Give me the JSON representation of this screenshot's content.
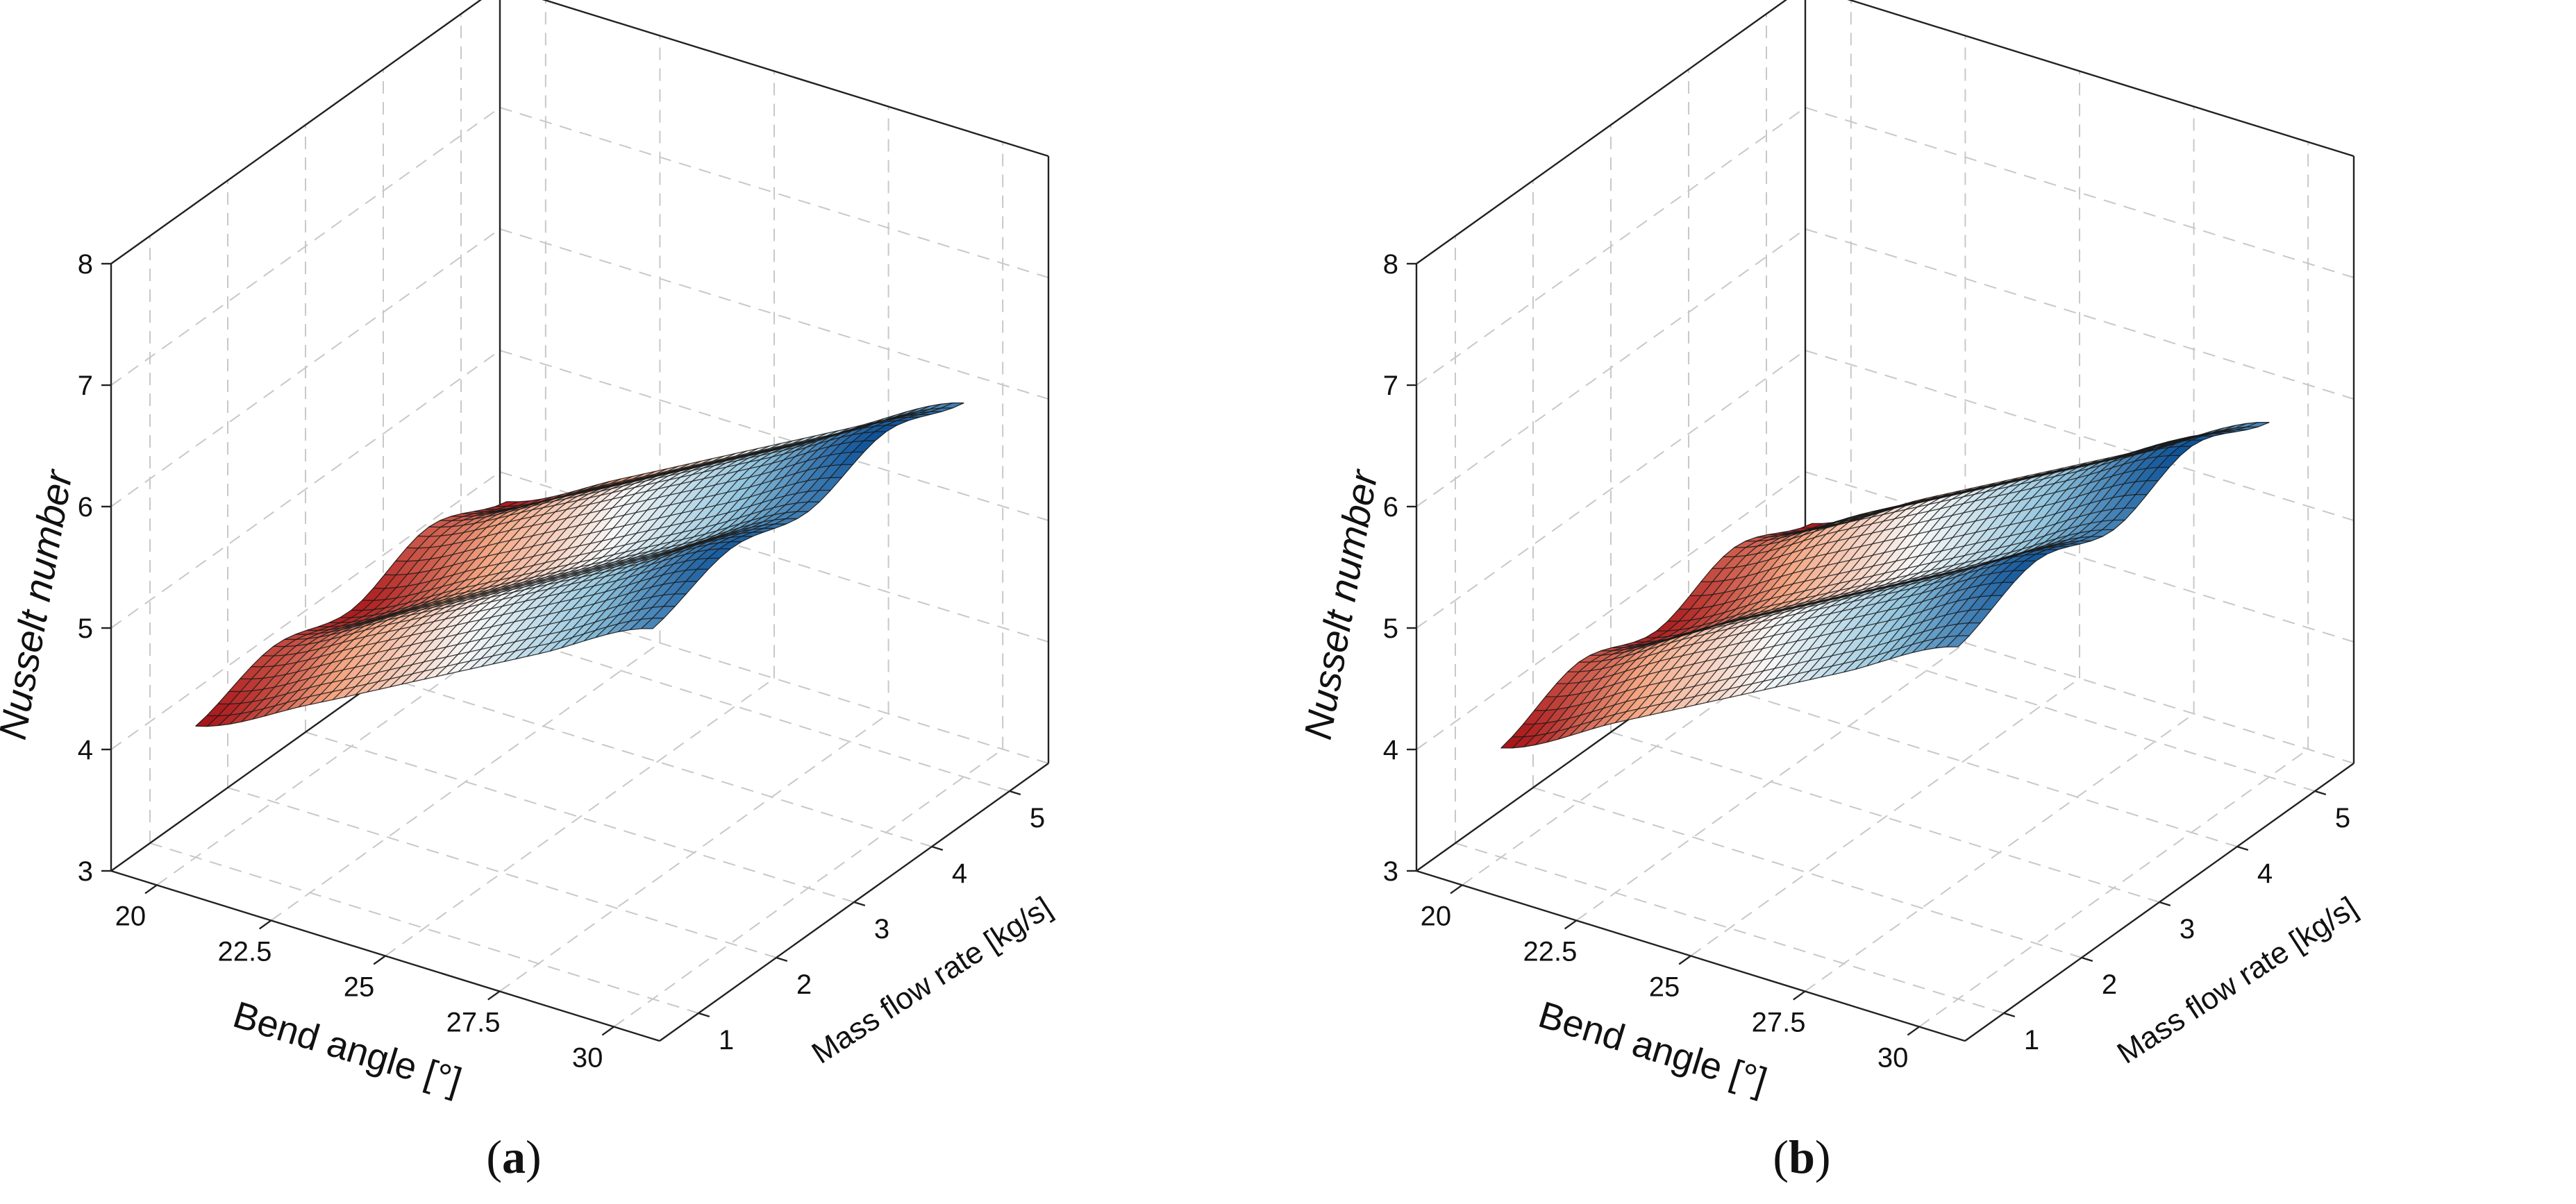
{
  "chart_data": [
    {
      "type": "surface3d",
      "panel_label": "a",
      "xlabel": "Bend angle [°]",
      "ylabel": "Mass flow rate [kg/s]",
      "zlabel": "Nusselt number",
      "x_ticks": [
        "20",
        "22.5",
        "25",
        "27.5",
        "30"
      ],
      "y_ticks": [
        "1",
        "2",
        "3",
        "4",
        "5"
      ],
      "z_ticks": [
        "3",
        "4",
        "5",
        "6",
        "7",
        "8"
      ],
      "xlim": [
        19,
        31
      ],
      "ylim": [
        0.5,
        5.5
      ],
      "zlim": [
        3,
        8
      ],
      "surface": {
        "x": [
          20,
          22.5,
          25,
          27.5,
          30
        ],
        "y": [
          1,
          2,
          3,
          4,
          5
        ],
        "z": [
          [
            4.08,
            4.55,
            5.05,
            5.55,
            6.05
          ],
          [
            4.28,
            4.75,
            5.25,
            5.75,
            6.25
          ],
          [
            4.12,
            4.6,
            5.1,
            5.6,
            6.1
          ],
          [
            4.35,
            4.8,
            5.3,
            5.8,
            6.3
          ],
          [
            4.1,
            4.58,
            5.08,
            5.58,
            6.08
          ]
        ]
      },
      "colormap": [
        "#a50f15",
        "#f4a582",
        "#f7f7f7",
        "#92c5de",
        "#0a4f96"
      ]
    },
    {
      "type": "surface3d",
      "panel_label": "b",
      "xlabel": "Bend angle [°]",
      "ylabel": "Mass flow rate [kg/s]",
      "zlabel": "Nusselt number",
      "x_ticks": [
        "20",
        "22.5",
        "25",
        "27.5",
        "30"
      ],
      "y_ticks": [
        "1",
        "2",
        "3",
        "4",
        "5"
      ],
      "z_ticks": [
        "3",
        "4",
        "5",
        "6",
        "7",
        "8"
      ],
      "xlim": [
        19,
        31
      ],
      "ylim": [
        0.5,
        5.5
      ],
      "zlim": [
        3,
        8
      ],
      "surface": {
        "x": [
          20,
          22.5,
          25,
          27.5,
          30
        ],
        "y": [
          1,
          2,
          3,
          4,
          5
        ],
        "z": [
          [
            3.9,
            4.4,
            4.9,
            5.4,
            5.9
          ],
          [
            4.15,
            4.65,
            5.15,
            5.65,
            6.15
          ],
          [
            3.95,
            4.45,
            4.95,
            5.45,
            5.95
          ],
          [
            4.18,
            4.68,
            5.18,
            5.68,
            6.18
          ],
          [
            3.92,
            4.42,
            4.92,
            5.42,
            5.92
          ]
        ]
      },
      "colormap": [
        "#a50f15",
        "#f4a582",
        "#f7f7f7",
        "#92c5de",
        "#0a4f96"
      ]
    }
  ]
}
